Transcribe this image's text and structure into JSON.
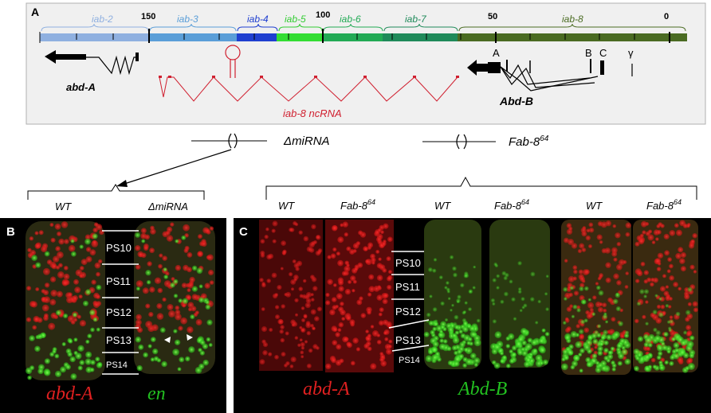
{
  "panel_a": {
    "label": "A",
    "scale": [
      {
        "text": "150",
        "pos": 150
      },
      {
        "text": "100",
        "pos": 100
      },
      {
        "text": "50",
        "pos": 50
      },
      {
        "text": "0",
        "pos": 0
      }
    ],
    "regions": [
      {
        "name": "iab-2",
        "color": "#8fb0e0"
      },
      {
        "name": "iab-3",
        "color": "#5a9ed8"
      },
      {
        "name": "iab-4",
        "color": "#1f3fd0"
      },
      {
        "name": "iab-5",
        "color": "#33dd33"
      },
      {
        "name": "iab-6",
        "color": "#22aa55"
      },
      {
        "name": "iab-7",
        "color": "#1f8a5a"
      },
      {
        "name": "iab-8",
        "color": "#4a6b22"
      }
    ],
    "abdA_label": "abd-A",
    "abdB_label": "Abd-B",
    "ncrna_label": "iab-8 ncRNA",
    "promoters": [
      "A",
      "B",
      "C",
      "γ"
    ]
  },
  "deletions": {
    "mirna": "ΔmiRNA",
    "fab_base": "Fab-8",
    "fab_sup": "64"
  },
  "panel_b": {
    "label": "B",
    "col_wt": "WT",
    "col_mut": "ΔmiRNA",
    "segments": [
      "PS10",
      "PS11",
      "PS12",
      "PS13",
      "PS14"
    ],
    "stain_red": "abd-A",
    "stain_green": "en"
  },
  "panel_c": {
    "label": "C",
    "cols": [
      {
        "base": "WT",
        "sup": ""
      },
      {
        "base": "Fab-8",
        "sup": "64"
      },
      {
        "base": "WT",
        "sup": ""
      },
      {
        "base": "Fab-8",
        "sup": "64"
      },
      {
        "base": "WT",
        "sup": ""
      },
      {
        "base": "Fab-8",
        "sup": "64"
      }
    ],
    "segments": [
      "PS10",
      "PS11",
      "PS12",
      "PS13",
      "PS14"
    ],
    "stain_red": "abd-A",
    "stain_green": "Abd-B"
  },
  "colors": {
    "red": "#e02020",
    "green": "#22c020",
    "ncrna": "#d02030"
  }
}
